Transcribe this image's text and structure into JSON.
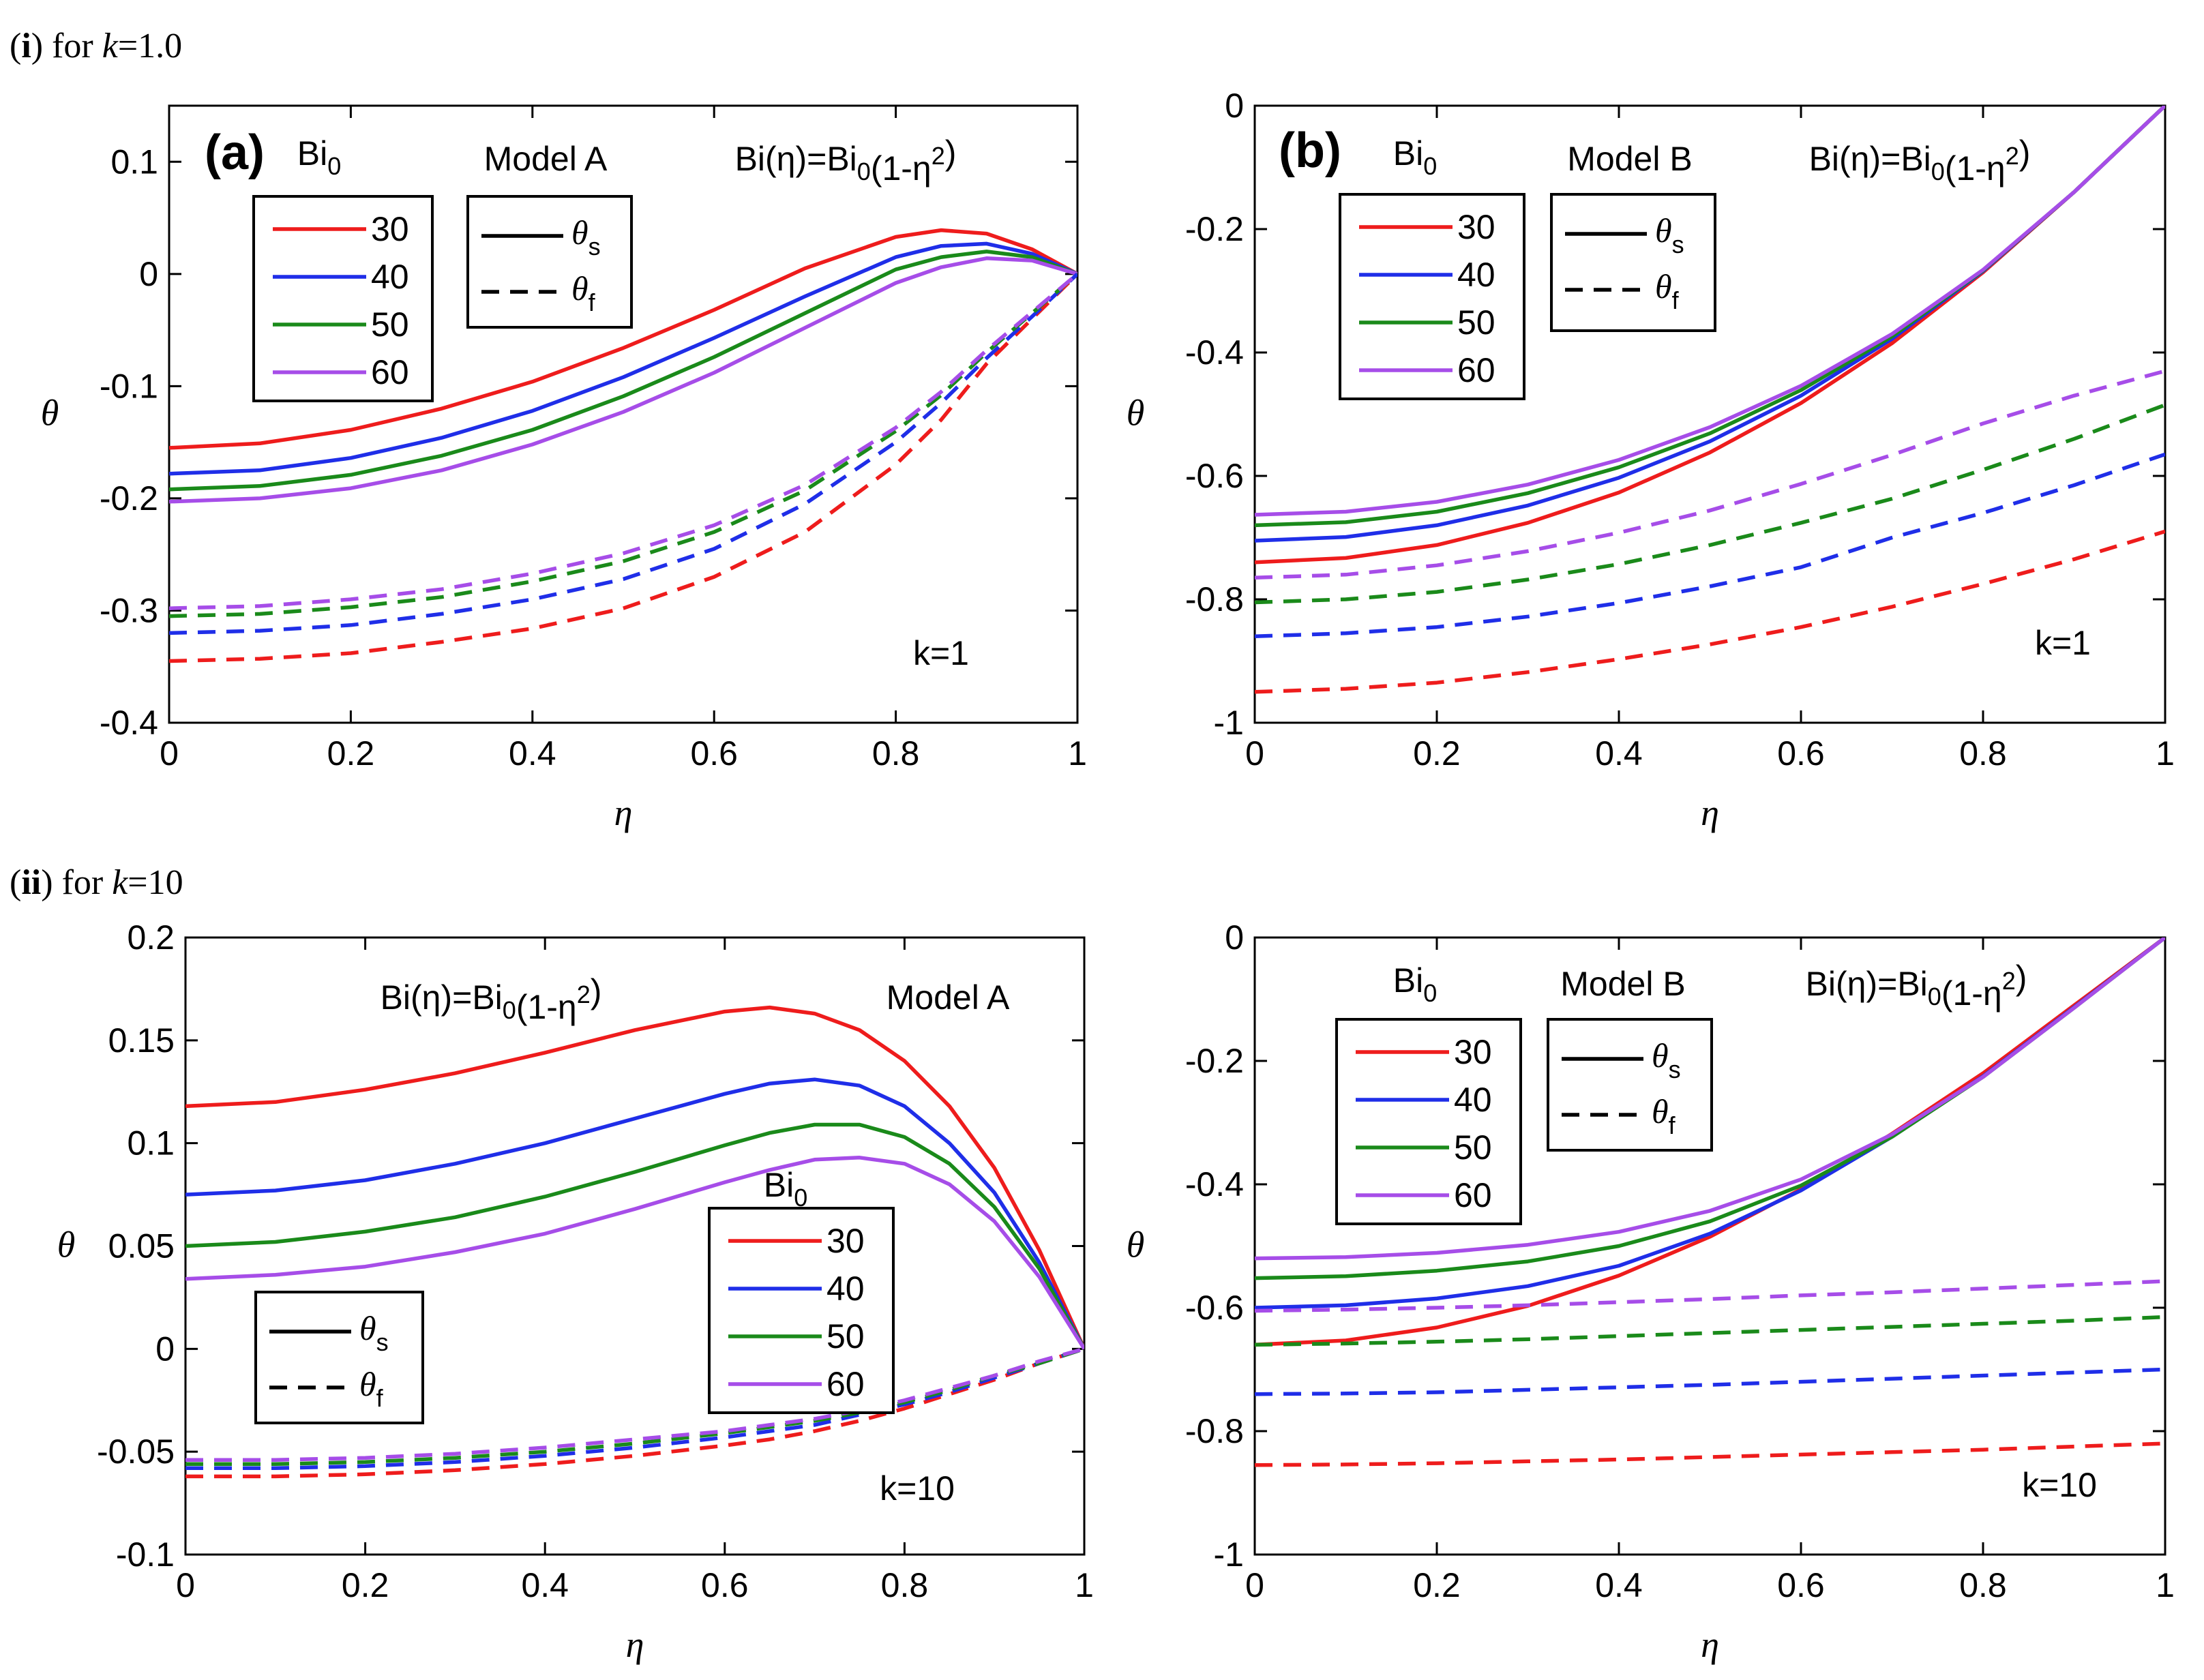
{
  "captions": {
    "row1": {
      "num": "i",
      "pre": " for ",
      "var": "k",
      "eq": "=1.0"
    },
    "row2": {
      "num": "ii",
      "pre": " for ",
      "var": "k",
      "eq": "=10"
    }
  },
  "colors": {
    "30": "#ee1c1c",
    "40": "#1f2ee8",
    "50": "#1a8a1a",
    "60": "#a64de8",
    "axis": "#000000"
  },
  "chart_data": [
    {
      "id": "a",
      "type": "line",
      "panel_label": "(a)",
      "model_label": "Model A",
      "bi_formula": "Bi(η)=Bi₀(1-η²)",
      "bi_legend_title": "Bi₀",
      "k_label": "k=1",
      "xlabel": "η",
      "ylabel": "θ",
      "xlim": [
        0,
        1
      ],
      "ylim": [
        -0.4,
        0.15
      ],
      "xticks": [
        0,
        0.2,
        0.4,
        0.6,
        0.8,
        1
      ],
      "xtick_labels": [
        "0",
        "0.2",
        "0.4",
        "0.6",
        "0.8",
        "1"
      ],
      "yticks": [
        -0.4,
        -0.3,
        -0.2,
        -0.1,
        0,
        0.1
      ],
      "ytick_labels": [
        "-0.4",
        "-0.3",
        "-0.2",
        "-0.1",
        "0",
        "0.1"
      ],
      "legend_bi": [
        "30",
        "40",
        "50",
        "60"
      ],
      "legend_theta": [
        "θs",
        "θf"
      ],
      "x": [
        0,
        0.1,
        0.2,
        0.3,
        0.4,
        0.5,
        0.6,
        0.7,
        0.8,
        0.85,
        0.9,
        0.95,
        1.0
      ],
      "series": [
        {
          "name": "30",
          "kind": "theta_s",
          "values": [
            -0.155,
            -0.151,
            -0.139,
            -0.12,
            -0.096,
            -0.066,
            -0.032,
            0.005,
            0.033,
            0.039,
            0.036,
            0.022,
            0.0
          ]
        },
        {
          "name": "40",
          "kind": "theta_s",
          "values": [
            -0.178,
            -0.175,
            -0.164,
            -0.146,
            -0.122,
            -0.092,
            -0.057,
            -0.02,
            0.015,
            0.025,
            0.027,
            0.018,
            0.0
          ]
        },
        {
          "name": "50",
          "kind": "theta_s",
          "values": [
            -0.192,
            -0.189,
            -0.179,
            -0.162,
            -0.139,
            -0.109,
            -0.074,
            -0.035,
            0.004,
            0.015,
            0.02,
            0.015,
            0.0
          ]
        },
        {
          "name": "60",
          "kind": "theta_s",
          "values": [
            -0.203,
            -0.2,
            -0.191,
            -0.175,
            -0.152,
            -0.123,
            -0.088,
            -0.048,
            -0.008,
            0.006,
            0.014,
            0.012,
            0.0
          ]
        },
        {
          "name": "30",
          "kind": "theta_f",
          "values": [
            -0.345,
            -0.343,
            -0.338,
            -0.328,
            -0.316,
            -0.298,
            -0.27,
            -0.23,
            -0.17,
            -0.13,
            -0.08,
            -0.04,
            0.0
          ]
        },
        {
          "name": "40",
          "kind": "theta_f",
          "values": [
            -0.32,
            -0.318,
            -0.313,
            -0.303,
            -0.29,
            -0.272,
            -0.245,
            -0.205,
            -0.15,
            -0.115,
            -0.075,
            -0.038,
            0.0
          ]
        },
        {
          "name": "50",
          "kind": "theta_f",
          "values": [
            -0.305,
            -0.303,
            -0.297,
            -0.288,
            -0.274,
            -0.256,
            -0.23,
            -0.193,
            -0.14,
            -0.108,
            -0.07,
            -0.035,
            0.0
          ]
        },
        {
          "name": "60",
          "kind": "theta_f",
          "values": [
            -0.298,
            -0.296,
            -0.29,
            -0.281,
            -0.267,
            -0.249,
            -0.224,
            -0.188,
            -0.137,
            -0.105,
            -0.068,
            -0.034,
            0.0
          ]
        }
      ]
    },
    {
      "id": "b",
      "type": "line",
      "panel_label": "(b)",
      "model_label": "Model B",
      "bi_formula": "Bi(η)=Bi₀(1-η²)",
      "bi_legend_title": "Bi₀",
      "k_label": "k=1",
      "xlabel": "η",
      "ylabel": "θ",
      "xlim": [
        0,
        1
      ],
      "ylim": [
        -1,
        0
      ],
      "xticks": [
        0,
        0.2,
        0.4,
        0.6,
        0.8,
        1
      ],
      "xtick_labels": [
        "0",
        "0.2",
        "0.4",
        "0.6",
        "0.8",
        "1"
      ],
      "yticks": [
        -1,
        -0.8,
        -0.6,
        -0.4,
        -0.2,
        0
      ],
      "ytick_labels": [
        "-1",
        "-0.8",
        "-0.6",
        "-0.4",
        "-0.2",
        "0"
      ],
      "legend_bi": [
        "30",
        "40",
        "50",
        "60"
      ],
      "legend_theta": [
        "θs",
        "θf"
      ],
      "x": [
        0,
        0.1,
        0.2,
        0.3,
        0.4,
        0.5,
        0.6,
        0.7,
        0.8,
        0.9,
        1.0
      ],
      "series": [
        {
          "name": "30",
          "kind": "theta_s",
          "values": [
            -0.74,
            -0.733,
            -0.712,
            -0.676,
            -0.627,
            -0.562,
            -0.482,
            -0.385,
            -0.27,
            -0.14,
            0.0
          ]
        },
        {
          "name": "40",
          "kind": "theta_s",
          "values": [
            -0.705,
            -0.699,
            -0.68,
            -0.648,
            -0.603,
            -0.544,
            -0.47,
            -0.378,
            -0.268,
            -0.14,
            0.0
          ]
        },
        {
          "name": "50",
          "kind": "theta_s",
          "values": [
            -0.68,
            -0.675,
            -0.658,
            -0.628,
            -0.586,
            -0.531,
            -0.461,
            -0.374,
            -0.267,
            -0.14,
            0.0
          ]
        },
        {
          "name": "60",
          "kind": "theta_s",
          "values": [
            -0.663,
            -0.658,
            -0.642,
            -0.614,
            -0.574,
            -0.521,
            -0.454,
            -0.37,
            -0.266,
            -0.14,
            0.0
          ]
        },
        {
          "name": "30",
          "kind": "theta_f",
          "values": [
            -0.95,
            -0.945,
            -0.935,
            -0.918,
            -0.897,
            -0.873,
            -0.845,
            -0.812,
            -0.775,
            -0.735,
            -0.69
          ]
        },
        {
          "name": "40",
          "kind": "theta_f",
          "values": [
            -0.86,
            -0.855,
            -0.845,
            -0.828,
            -0.806,
            -0.779,
            -0.748,
            -0.7,
            -0.66,
            -0.615,
            -0.565
          ]
        },
        {
          "name": "50",
          "kind": "theta_f",
          "values": [
            -0.805,
            -0.8,
            -0.788,
            -0.768,
            -0.743,
            -0.712,
            -0.676,
            -0.637,
            -0.59,
            -0.54,
            -0.485
          ]
        },
        {
          "name": "60",
          "kind": "theta_f",
          "values": [
            -0.765,
            -0.76,
            -0.745,
            -0.722,
            -0.692,
            -0.656,
            -0.613,
            -0.566,
            -0.515,
            -0.47,
            -0.43
          ]
        }
      ]
    },
    {
      "id": "c",
      "type": "line",
      "panel_label": "",
      "model_label": "Model A",
      "bi_formula": "Bi(η)=Bi₀(1-η²)",
      "bi_legend_title": "Bi₀",
      "k_label": "k=10",
      "xlabel": "η",
      "ylabel": "θ",
      "xlim": [
        0,
        1
      ],
      "ylim": [
        -0.1,
        0.2
      ],
      "xticks": [
        0,
        0.2,
        0.4,
        0.6,
        0.8,
        1
      ],
      "xtick_labels": [
        "0",
        "0.2",
        "0.4",
        "0.6",
        "0.8",
        "1"
      ],
      "yticks": [
        -0.1,
        -0.05,
        0,
        0.05,
        0.1,
        0.15,
        0.2
      ],
      "ytick_labels": [
        "-0.1",
        "-0.05",
        "0",
        "0.05",
        "0.1",
        "0.15",
        "0.2"
      ],
      "legend_bi": [
        "30",
        "40",
        "50",
        "60"
      ],
      "legend_theta": [
        "θs",
        "θf"
      ],
      "x": [
        0,
        0.1,
        0.2,
        0.3,
        0.4,
        0.5,
        0.6,
        0.65,
        0.7,
        0.75,
        0.8,
        0.85,
        0.9,
        0.95,
        1.0
      ],
      "series": [
        {
          "name": "30",
          "kind": "theta_s",
          "values": [
            0.118,
            0.12,
            0.126,
            0.134,
            0.144,
            0.155,
            0.164,
            0.166,
            0.163,
            0.155,
            0.14,
            0.118,
            0.088,
            0.048,
            0.0
          ]
        },
        {
          "name": "40",
          "kind": "theta_s",
          "values": [
            0.075,
            0.077,
            0.082,
            0.09,
            0.1,
            0.112,
            0.124,
            0.129,
            0.131,
            0.128,
            0.118,
            0.1,
            0.076,
            0.042,
            0.0
          ]
        },
        {
          "name": "50",
          "kind": "theta_s",
          "values": [
            0.05,
            0.052,
            0.057,
            0.064,
            0.074,
            0.086,
            0.099,
            0.105,
            0.109,
            0.109,
            0.103,
            0.09,
            0.069,
            0.039,
            0.0
          ]
        },
        {
          "name": "60",
          "kind": "theta_s",
          "values": [
            0.034,
            0.036,
            0.04,
            0.047,
            0.056,
            0.068,
            0.081,
            0.087,
            0.092,
            0.093,
            0.09,
            0.08,
            0.062,
            0.035,
            0.0
          ]
        },
        {
          "name": "30",
          "kind": "theta_f",
          "values": [
            -0.062,
            -0.062,
            -0.061,
            -0.059,
            -0.056,
            -0.052,
            -0.047,
            -0.044,
            -0.04,
            -0.035,
            -0.029,
            -0.022,
            -0.015,
            -0.007,
            0.0
          ]
        },
        {
          "name": "40",
          "kind": "theta_f",
          "values": [
            -0.058,
            -0.058,
            -0.057,
            -0.055,
            -0.052,
            -0.048,
            -0.043,
            -0.04,
            -0.037,
            -0.032,
            -0.027,
            -0.021,
            -0.014,
            -0.007,
            0.0
          ]
        },
        {
          "name": "50",
          "kind": "theta_f",
          "values": [
            -0.056,
            -0.056,
            -0.055,
            -0.053,
            -0.05,
            -0.046,
            -0.041,
            -0.038,
            -0.035,
            -0.031,
            -0.026,
            -0.02,
            -0.013,
            -0.007,
            0.0
          ]
        },
        {
          "name": "60",
          "kind": "theta_f",
          "values": [
            -0.054,
            -0.054,
            -0.053,
            -0.051,
            -0.048,
            -0.044,
            -0.04,
            -0.037,
            -0.034,
            -0.03,
            -0.025,
            -0.019,
            -0.013,
            -0.006,
            0.0
          ]
        }
      ]
    },
    {
      "id": "d",
      "type": "line",
      "panel_label": "",
      "model_label": "Model B",
      "bi_formula": "Bi(η)=Bi₀(1-η²)",
      "bi_legend_title": "Bi₀",
      "k_label": "k=10",
      "xlabel": "η",
      "ylabel": "θ",
      "xlim": [
        0,
        1
      ],
      "ylim": [
        -1,
        0
      ],
      "xticks": [
        0,
        0.2,
        0.4,
        0.6,
        0.8,
        1
      ],
      "xtick_labels": [
        "0",
        "0.2",
        "0.4",
        "0.6",
        "0.8",
        "1"
      ],
      "yticks": [
        -1,
        -0.8,
        -0.6,
        -0.4,
        -0.2,
        0
      ],
      "ytick_labels": [
        "-1",
        "-0.8",
        "-0.6",
        "-0.4",
        "-0.2",
        "0"
      ],
      "legend_bi": [
        "30",
        "40",
        "50",
        "60"
      ],
      "legend_theta": [
        "θs",
        "θf"
      ],
      "x": [
        0,
        0.1,
        0.2,
        0.3,
        0.4,
        0.5,
        0.6,
        0.7,
        0.8,
        0.9,
        1.0
      ],
      "series": [
        {
          "name": "30",
          "kind": "theta_s",
          "values": [
            -0.66,
            -0.653,
            -0.632,
            -0.597,
            -0.548,
            -0.485,
            -0.408,
            -0.318,
            -0.22,
            -0.11,
            0.0
          ]
        },
        {
          "name": "40",
          "kind": "theta_s",
          "values": [
            -0.6,
            -0.596,
            -0.585,
            -0.565,
            -0.532,
            -0.48,
            -0.41,
            -0.323,
            -0.225,
            -0.113,
            0.0
          ]
        },
        {
          "name": "50",
          "kind": "theta_s",
          "values": [
            -0.552,
            -0.549,
            -0.54,
            -0.525,
            -0.5,
            -0.46,
            -0.402,
            -0.323,
            -0.226,
            -0.114,
            0.0
          ]
        },
        {
          "name": "60",
          "kind": "theta_s",
          "values": [
            -0.52,
            -0.518,
            -0.511,
            -0.498,
            -0.477,
            -0.443,
            -0.392,
            -0.319,
            -0.226,
            -0.114,
            0.0
          ]
        },
        {
          "name": "30",
          "kind": "theta_f",
          "values": [
            -0.855,
            -0.854,
            -0.852,
            -0.849,
            -0.846,
            -0.842,
            -0.838,
            -0.834,
            -0.83,
            -0.825,
            -0.82
          ]
        },
        {
          "name": "40",
          "kind": "theta_f",
          "values": [
            -0.74,
            -0.739,
            -0.737,
            -0.733,
            -0.729,
            -0.725,
            -0.72,
            -0.715,
            -0.71,
            -0.705,
            -0.7
          ]
        },
        {
          "name": "50",
          "kind": "theta_f",
          "values": [
            -0.66,
            -0.658,
            -0.655,
            -0.651,
            -0.646,
            -0.641,
            -0.636,
            -0.631,
            -0.626,
            -0.621,
            -0.615
          ]
        },
        {
          "name": "60",
          "kind": "theta_f",
          "values": [
            -0.605,
            -0.603,
            -0.6,
            -0.596,
            -0.591,
            -0.586,
            -0.58,
            -0.575,
            -0.569,
            -0.563,
            -0.557
          ]
        }
      ]
    }
  ]
}
